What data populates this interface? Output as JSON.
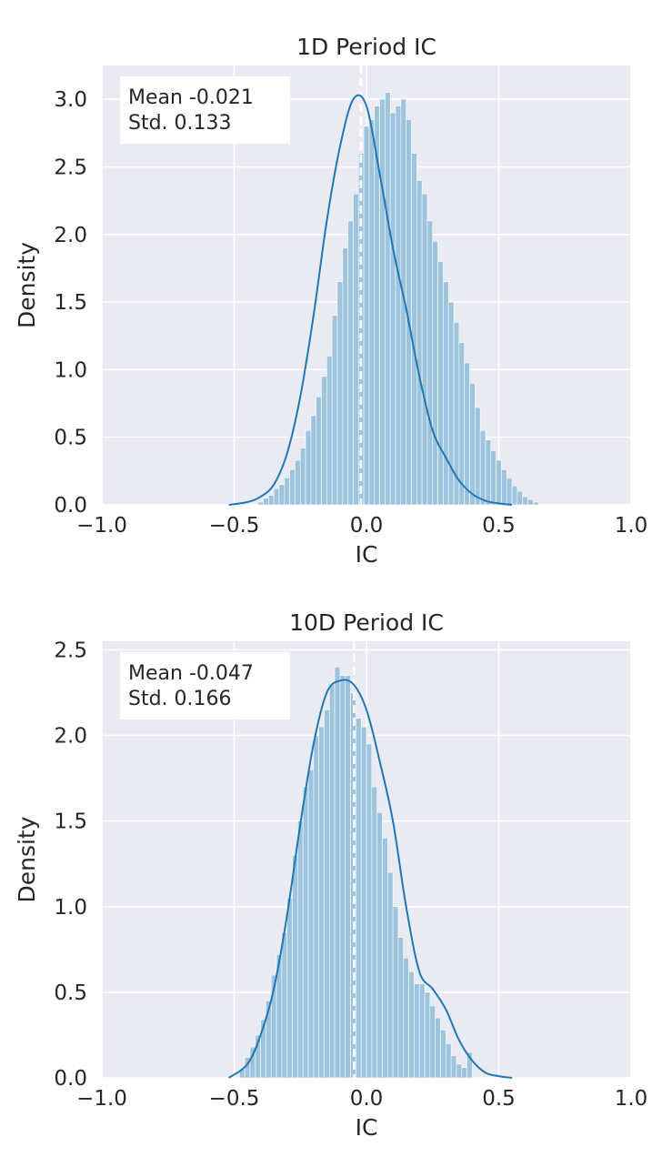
{
  "chart_data": [
    {
      "type": "histogram",
      "title": "1D Period IC",
      "xlabel": "IC",
      "ylabel": "Density",
      "xlim": [
        -1.0,
        1.0
      ],
      "ylim": [
        0.0,
        3.25
      ],
      "xticks": [
        -1.0,
        -0.5,
        0.0,
        0.5,
        1.0
      ],
      "xtick_labels": [
        "−1.0",
        "−0.5",
        "0.0",
        "0.5",
        "1.0"
      ],
      "yticks": [
        0.0,
        0.5,
        1.0,
        1.5,
        2.0,
        2.5,
        3.0
      ],
      "ytick_labels": [
        "0.0",
        "0.5",
        "1.0",
        "1.5",
        "2.0",
        "2.5",
        "3.0"
      ],
      "grid": true,
      "annotation": [
        "Mean -0.021",
        " Std. 0.133"
      ],
      "mean_line_x": -0.021,
      "bar_color": "#9ec3dc",
      "kde_color": "#1f77b4",
      "bins": {
        "start": -0.41,
        "width": 0.02,
        "heights": [
          0.02,
          0.05,
          0.07,
          0.12,
          0.15,
          0.2,
          0.26,
          0.33,
          0.42,
          0.55,
          0.66,
          0.8,
          0.95,
          1.1,
          1.4,
          1.65,
          1.9,
          2.1,
          2.3,
          2.6,
          2.8,
          2.85,
          2.95,
          3.0,
          3.05,
          2.9,
          2.95,
          3.0,
          2.85,
          2.6,
          2.4,
          2.3,
          2.1,
          1.95,
          1.8,
          1.65,
          1.5,
          1.35,
          1.2,
          1.05,
          0.9,
          0.72,
          0.55,
          0.48,
          0.4,
          0.33,
          0.26,
          0.2,
          0.14,
          0.1,
          0.06,
          0.04,
          0.02
        ]
      },
      "kde": {
        "x": [
          -0.52,
          -0.45,
          -0.4,
          -0.35,
          -0.3,
          -0.25,
          -0.2,
          -0.15,
          -0.1,
          -0.05,
          0.0,
          0.05,
          0.1,
          0.15,
          0.2,
          0.25,
          0.3,
          0.35,
          0.4,
          0.45,
          0.5,
          0.55
        ],
        "y": [
          0.0,
          0.02,
          0.06,
          0.15,
          0.38,
          0.8,
          1.4,
          2.1,
          2.65,
          3.0,
          2.95,
          2.45,
          1.9,
          1.45,
          0.95,
          0.55,
          0.35,
          0.18,
          0.08,
          0.03,
          0.01,
          0.0
        ]
      }
    },
    {
      "type": "histogram",
      "title": "10D Period IC",
      "xlabel": "IC",
      "ylabel": "Density",
      "xlim": [
        -1.0,
        1.0
      ],
      "ylim": [
        0.0,
        2.55
      ],
      "xticks": [
        -1.0,
        -0.5,
        0.0,
        0.5,
        1.0
      ],
      "xtick_labels": [
        "−1.0",
        "−0.5",
        "0.0",
        "0.5",
        "1.0"
      ],
      "yticks": [
        0.0,
        0.5,
        1.0,
        1.5,
        2.0,
        2.5
      ],
      "ytick_labels": [
        "0.0",
        "0.5",
        "1.0",
        "1.5",
        "2.0",
        "2.5"
      ],
      "grid": true,
      "annotation": [
        "Mean -0.047",
        " Std. 0.166"
      ],
      "mean_line_x": -0.047,
      "bar_color": "#9ec3dc",
      "kde_color": "#1f77b4",
      "bins": {
        "start": -0.48,
        "width": 0.02,
        "heights": [
          0.05,
          0.12,
          0.18,
          0.25,
          0.34,
          0.45,
          0.6,
          0.72,
          0.85,
          1.05,
          1.3,
          1.5,
          1.7,
          1.8,
          2.0,
          2.05,
          2.15,
          2.3,
          2.4,
          2.35,
          2.35,
          2.25,
          2.1,
          2.05,
          1.95,
          1.7,
          1.55,
          1.4,
          1.2,
          1.0,
          0.82,
          0.7,
          0.62,
          0.55,
          0.55,
          0.5,
          0.42,
          0.35,
          0.28,
          0.2,
          0.13,
          0.08,
          0.06,
          0.15
        ]
      },
      "kde": {
        "x": [
          -0.52,
          -0.45,
          -0.4,
          -0.35,
          -0.3,
          -0.25,
          -0.2,
          -0.15,
          -0.1,
          -0.05,
          0.0,
          0.05,
          0.1,
          0.15,
          0.2,
          0.25,
          0.3,
          0.35,
          0.4,
          0.45,
          0.5,
          0.55
        ],
        "y": [
          0.0,
          0.08,
          0.25,
          0.52,
          0.95,
          1.48,
          1.95,
          2.25,
          2.32,
          2.3,
          2.15,
          1.85,
          1.5,
          1.0,
          0.62,
          0.52,
          0.4,
          0.22,
          0.1,
          0.03,
          0.01,
          0.0
        ]
      }
    }
  ]
}
